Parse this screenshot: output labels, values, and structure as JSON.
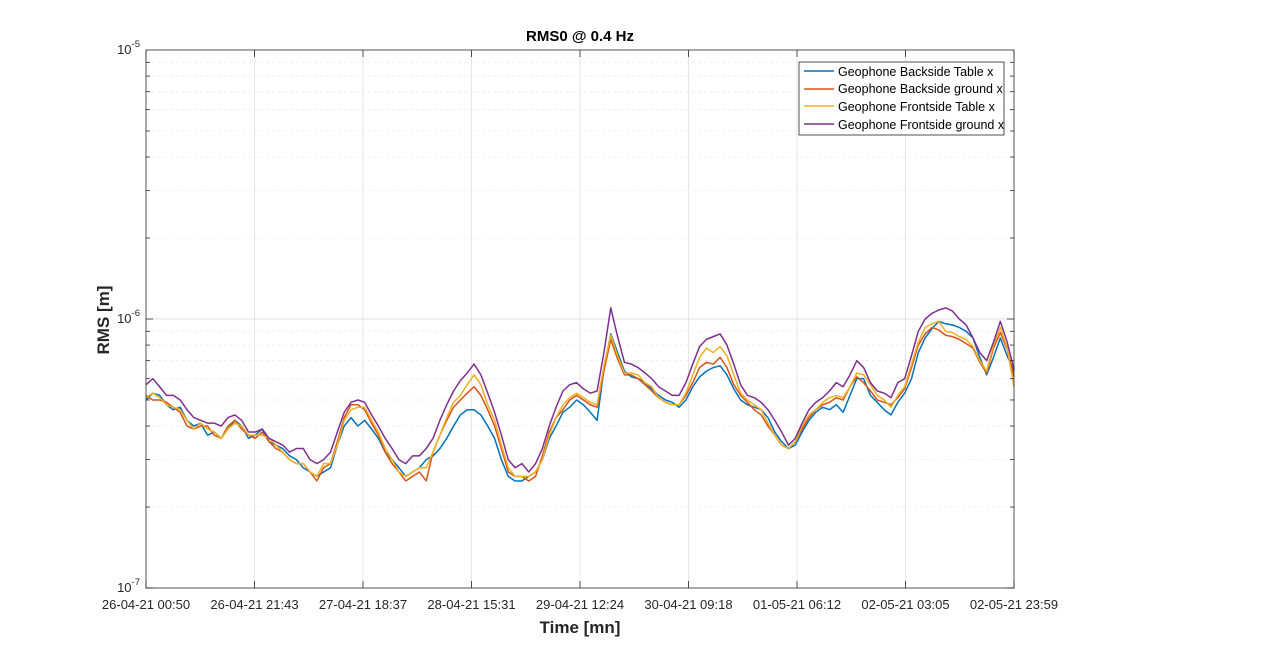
{
  "chart_data": {
    "type": "line",
    "title": "RMS0 @ 0.4 Hz",
    "xlabel": "Time [mn]",
    "ylabel": "RMS [m]",
    "yscale": "log",
    "ylim": [
      1e-07,
      1e-05
    ],
    "ytick_labels": [
      {
        "base": "10",
        "exp": "-7"
      },
      {
        "base": "10",
        "exp": "-6"
      },
      {
        "base": "10",
        "exp": "-5"
      }
    ],
    "xlim": [
      "26-04-21 00:50",
      "02-05-21 23:59"
    ],
    "xtick_labels": [
      "26-04-21 00:50",
      "26-04-21 21:43",
      "27-04-21 18:37",
      "28-04-21 15:31",
      "29-04-21 12:24",
      "30-04-21 09:18",
      "01-05-21 06:12",
      "02-05-21 03:05",
      "02-05-21 23:59"
    ],
    "grid": true,
    "legend_position": "top-right",
    "x_sampling": "uniform",
    "series": [
      {
        "name": "Geophone Backside Table x",
        "color": "#0072BD",
        "values": [
          5e-07,
          5.3e-07,
          5.2e-07,
          4.8e-07,
          4.6e-07,
          4.7e-07,
          4.2e-07,
          4e-07,
          4.1e-07,
          3.7e-07,
          3.8e-07,
          3.6e-07,
          3.9e-07,
          4.2e-07,
          4e-07,
          3.6e-07,
          3.7e-07,
          3.9e-07,
          3.5e-07,
          3.4e-07,
          3.3e-07,
          3.1e-07,
          3e-07,
          2.8e-07,
          2.7e-07,
          2.6e-07,
          2.7e-07,
          2.8e-07,
          3.4e-07,
          4e-07,
          4.3e-07,
          4e-07,
          4.2e-07,
          3.9e-07,
          3.6e-07,
          3.2e-07,
          3e-07,
          2.8e-07,
          2.6e-07,
          2.7e-07,
          2.8e-07,
          3e-07,
          3.1e-07,
          3.3e-07,
          3.6e-07,
          4e-07,
          4.4e-07,
          4.6e-07,
          4.6e-07,
          4.4e-07,
          4e-07,
          3.6e-07,
          3e-07,
          2.6e-07,
          2.5e-07,
          2.5e-07,
          2.6e-07,
          2.7e-07,
          3e-07,
          3.6e-07,
          4e-07,
          4.5e-07,
          4.7e-07,
          5e-07,
          4.8e-07,
          4.5e-07,
          4.2e-07,
          6.5e-07,
          8.8e-07,
          7.5e-07,
          6.4e-07,
          6.1e-07,
          6e-07,
          5.8e-07,
          5.5e-07,
          5.2e-07,
          5e-07,
          4.9e-07,
          4.7e-07,
          5e-07,
          5.6e-07,
          6.1e-07,
          6.4e-07,
          6.6e-07,
          6.7e-07,
          6.2e-07,
          5.5e-07,
          5e-07,
          4.8e-07,
          4.7e-07,
          4.6e-07,
          4.3e-07,
          3.8e-07,
          3.5e-07,
          3.3e-07,
          3.4e-07,
          3.8e-07,
          4.2e-07,
          4.5e-07,
          4.7e-07,
          4.6e-07,
          4.8e-07,
          4.5e-07,
          5.2e-07,
          6e-07,
          6e-07,
          5.2e-07,
          4.9e-07,
          4.6e-07,
          4.4e-07,
          4.9e-07,
          5.3e-07,
          6e-07,
          7.5e-07,
          8.5e-07,
          9.2e-07,
          9.8e-07,
          9.6e-07,
          9.5e-07,
          9.3e-07,
          9e-07,
          8.5e-07,
          7.2e-07,
          6.2e-07,
          7.2e-07,
          8.5e-07,
          7.3e-07,
          6.4e-07
        ]
      },
      {
        "name": "Geophone Backside ground x",
        "color": "#D95319",
        "values": [
          5.2e-07,
          5e-07,
          5e-07,
          4.9e-07,
          4.7e-07,
          4.5e-07,
          4e-07,
          3.9e-07,
          4e-07,
          4e-07,
          3.7e-07,
          3.6e-07,
          4e-07,
          4.2e-07,
          3.9e-07,
          3.7e-07,
          3.6e-07,
          3.8e-07,
          3.5e-07,
          3.3e-07,
          3.2e-07,
          3e-07,
          2.9e-07,
          2.9e-07,
          2.7e-07,
          2.5e-07,
          2.8e-07,
          2.9e-07,
          3.5e-07,
          4.3e-07,
          4.8e-07,
          4.8e-07,
          4.6e-07,
          4.1e-07,
          3.7e-07,
          3.2e-07,
          2.9e-07,
          2.7e-07,
          2.5e-07,
          2.6e-07,
          2.7e-07,
          2.5e-07,
          3.2e-07,
          3.7e-07,
          4.2e-07,
          4.7e-07,
          5e-07,
          5.3e-07,
          5.6e-07,
          5.2e-07,
          4.6e-07,
          4e-07,
          3.3e-07,
          2.7e-07,
          2.6e-07,
          2.6e-07,
          2.5e-07,
          2.6e-07,
          3.1e-07,
          3.8e-07,
          4.3e-07,
          4.6e-07,
          5e-07,
          5.2e-07,
          5e-07,
          4.8e-07,
          4.7e-07,
          6.4e-07,
          8.4e-07,
          7.1e-07,
          6.2e-07,
          6.2e-07,
          6e-07,
          5.7e-07,
          5.4e-07,
          5.1e-07,
          4.9e-07,
          4.8e-07,
          4.8e-07,
          5.2e-07,
          5.8e-07,
          6.6e-07,
          6.9e-07,
          6.8e-07,
          7.2e-07,
          6.6e-07,
          5.7e-07,
          5.2e-07,
          4.9e-07,
          4.6e-07,
          4.4e-07,
          4e-07,
          3.7e-07,
          3.4e-07,
          3.3e-07,
          3.5e-07,
          3.9e-07,
          4.3e-07,
          4.6e-07,
          4.8e-07,
          4.9e-07,
          5.1e-07,
          5e-07,
          5.6e-07,
          6.1e-07,
          5.8e-07,
          5.4e-07,
          5e-07,
          4.9e-07,
          4.8e-07,
          5.1e-07,
          5.5e-07,
          6.6e-07,
          8e-07,
          8.8e-07,
          9.3e-07,
          9.1e-07,
          8.7e-07,
          8.6e-07,
          8.4e-07,
          8.1e-07,
          7.8e-07,
          6.9e-07,
          6.3e-07,
          7.8e-07,
          8.9e-07,
          7.7e-07,
          6.1e-07
        ]
      },
      {
        "name": "Geophone Frontside Table x",
        "color": "#EDB120",
        "values": [
          5.1e-07,
          5.3e-07,
          5.1e-07,
          4.8e-07,
          4.7e-07,
          4.6e-07,
          4.2e-07,
          3.9e-07,
          4.1e-07,
          3.9e-07,
          3.8e-07,
          3.6e-07,
          3.9e-07,
          4.1e-07,
          4e-07,
          3.7e-07,
          3.7e-07,
          3.7e-07,
          3.6e-07,
          3.4e-07,
          3.2e-07,
          3e-07,
          2.9e-07,
          2.9e-07,
          2.7e-07,
          2.6e-07,
          2.9e-07,
          2.9e-07,
          3.4e-07,
          4.2e-07,
          4.6e-07,
          4.7e-07,
          4.7e-07,
          4.2e-07,
          3.8e-07,
          3.3e-07,
          3e-07,
          2.7e-07,
          2.6e-07,
          2.7e-07,
          2.8e-07,
          2.8e-07,
          3.2e-07,
          3.7e-07,
          4.3e-07,
          4.9e-07,
          5.2e-07,
          5.7e-07,
          6.2e-07,
          5.7e-07,
          4.8e-07,
          4.2e-07,
          3.4e-07,
          2.8e-07,
          2.6e-07,
          2.6e-07,
          2.6e-07,
          2.7e-07,
          3e-07,
          3.7e-07,
          4.3e-07,
          4.8e-07,
          5.1e-07,
          5.3e-07,
          5.1e-07,
          4.9e-07,
          4.8e-07,
          6.7e-07,
          8.7e-07,
          7.3e-07,
          6.3e-07,
          6.3e-07,
          6.2e-07,
          5.8e-07,
          5.6e-07,
          5.1e-07,
          4.9e-07,
          4.8e-07,
          4.8e-07,
          5.3e-07,
          6.2e-07,
          7.2e-07,
          7.8e-07,
          7.5e-07,
          7.9e-07,
          7.3e-07,
          6.2e-07,
          5.3e-07,
          5e-07,
          4.8e-07,
          4.6e-07,
          4.1e-07,
          3.7e-07,
          3.4e-07,
          3.3e-07,
          3.5e-07,
          4e-07,
          4.4e-07,
          4.6e-07,
          4.9e-07,
          5.1e-07,
          5.2e-07,
          5.1e-07,
          5.6e-07,
          6.3e-07,
          6.2e-07,
          5.7e-07,
          5.2e-07,
          5e-07,
          4.7e-07,
          5.2e-07,
          5.6e-07,
          6.8e-07,
          8.2e-07,
          9.3e-07,
          9.6e-07,
          9.8e-07,
          9e-07,
          8.9e-07,
          8.6e-07,
          8.4e-07,
          7.9e-07,
          7e-07,
          6.4e-07,
          8e-07,
          9.3e-07,
          7.8e-07,
          5.6e-07
        ]
      },
      {
        "name": "Geophone Frontside ground x",
        "color": "#7E2F8E",
        "values": [
          5.7e-07,
          6e-07,
          5.6e-07,
          5.2e-07,
          5.2e-07,
          5e-07,
          4.6e-07,
          4.3e-07,
          4.2e-07,
          4.1e-07,
          4.1e-07,
          4e-07,
          4.3e-07,
          4.4e-07,
          4.2e-07,
          3.8e-07,
          3.8e-07,
          3.9e-07,
          3.6e-07,
          3.5e-07,
          3.4e-07,
          3.2e-07,
          3.3e-07,
          3.3e-07,
          3e-07,
          2.9e-07,
          3e-07,
          3.2e-07,
          3.8e-07,
          4.5e-07,
          4.9e-07,
          5e-07,
          4.9e-07,
          4.4e-07,
          4e-07,
          3.6e-07,
          3.3e-07,
          3e-07,
          2.9e-07,
          3.1e-07,
          3.1e-07,
          3.3e-07,
          3.6e-07,
          4.2e-07,
          4.8e-07,
          5.4e-07,
          5.9e-07,
          6.3e-07,
          6.8e-07,
          6.2e-07,
          5.3e-07,
          4.5e-07,
          3.7e-07,
          3e-07,
          2.8e-07,
          2.9e-07,
          2.7e-07,
          2.9e-07,
          3.3e-07,
          4e-07,
          4.7e-07,
          5.4e-07,
          5.7e-07,
          5.8e-07,
          5.5e-07,
          5.3e-07,
          5.4e-07,
          7.5e-07,
          1.1e-06,
          8.6e-07,
          6.9e-07,
          6.8e-07,
          6.6e-07,
          6.3e-07,
          6e-07,
          5.6e-07,
          5.4e-07,
          5.2e-07,
          5.2e-07,
          5.8e-07,
          6.8e-07,
          7.9e-07,
          8.4e-07,
          8.6e-07,
          8.8e-07,
          8e-07,
          6.8e-07,
          5.7e-07,
          5.2e-07,
          5.1e-07,
          4.9e-07,
          4.6e-07,
          4.2e-07,
          3.8e-07,
          3.4e-07,
          3.6e-07,
          4.1e-07,
          4.6e-07,
          4.9e-07,
          5.1e-07,
          5.4e-07,
          5.8e-07,
          5.6e-07,
          6.2e-07,
          7e-07,
          6.6e-07,
          5.8e-07,
          5.4e-07,
          5.3e-07,
          5.1e-07,
          5.8e-07,
          6e-07,
          7.3e-07,
          9e-07,
          1e-06,
          1.05e-06,
          1.08e-06,
          1.1e-06,
          1.07e-06,
          1e-06,
          9.5e-07,
          8.5e-07,
          7.5e-07,
          7e-07,
          8.2e-07,
          9.8e-07,
          8.2e-07,
          6.5e-07
        ]
      }
    ]
  }
}
